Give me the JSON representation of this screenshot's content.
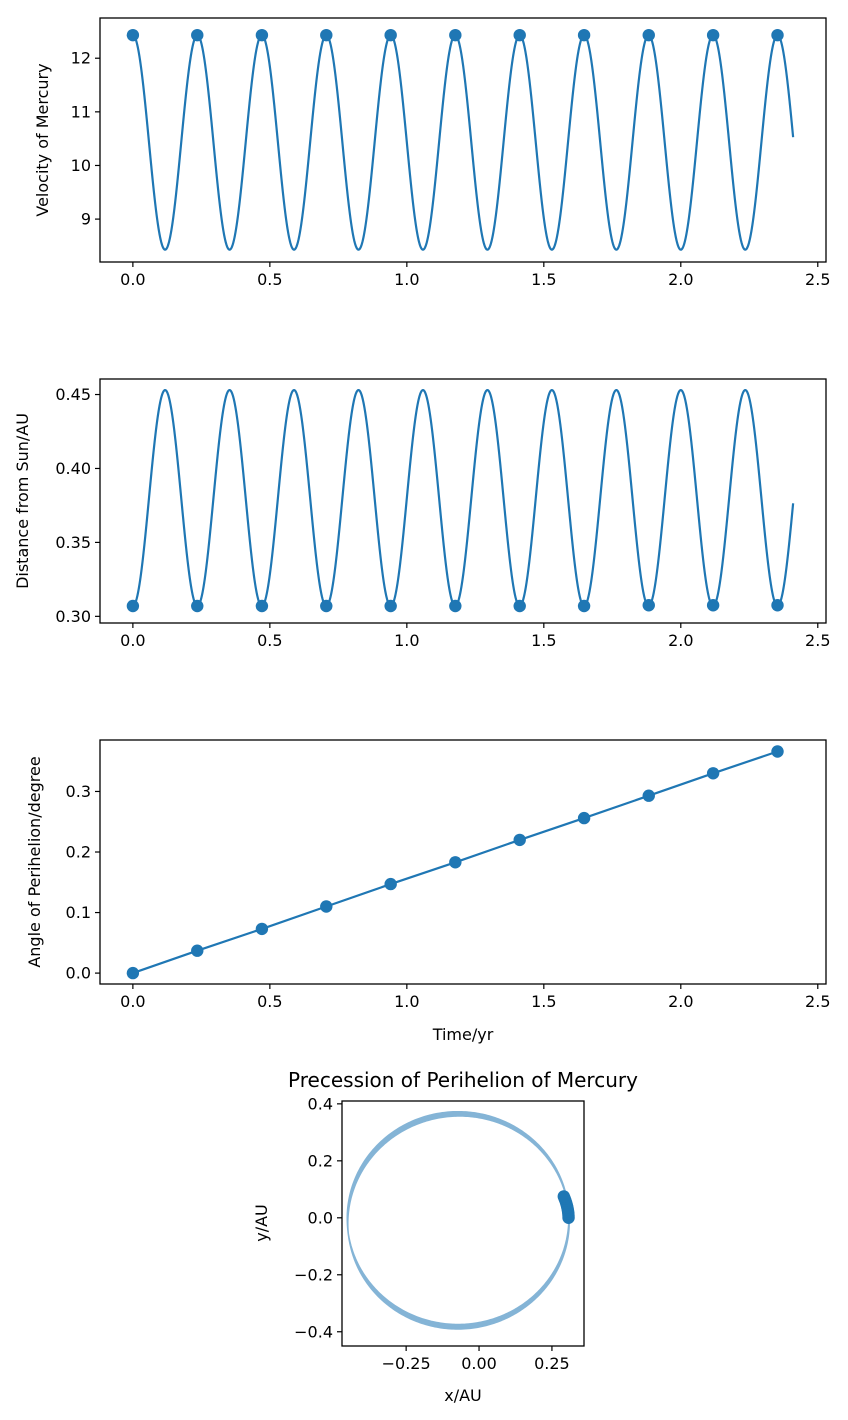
{
  "colors": {
    "series": "#1f77b4",
    "axes": "#000000",
    "background": "#ffffff"
  },
  "chart_data": [
    {
      "type": "line",
      "title": "",
      "xlabel": "",
      "ylabel": "Velocity of Mercury",
      "xlim": [
        -0.12,
        2.53
      ],
      "ylim": [
        8.2,
        12.75
      ],
      "xticks": [
        0.0,
        0.5,
        1.0,
        1.5,
        2.0,
        2.5
      ],
      "xtick_labels": [
        "0.0",
        "0.5",
        "1.0",
        "1.5",
        "2.0",
        "2.5"
      ],
      "yticks": [
        9,
        10,
        11,
        12
      ],
      "ytick_labels": [
        "9",
        "10",
        "11",
        "12"
      ],
      "curve": {
        "kind": "periodic",
        "period": 0.2353,
        "tmax": 2.41,
        "max": 12.43,
        "min": 8.43,
        "peak_at_marker": true
      },
      "series": [
        {
          "mode": "markers",
          "x": [
            0.0,
            0.235,
            0.471,
            0.706,
            0.941,
            1.177,
            1.412,
            1.647,
            1.883,
            2.118,
            2.353
          ],
          "y": [
            12.43,
            12.43,
            12.43,
            12.43,
            12.43,
            12.43,
            12.43,
            12.43,
            12.43,
            12.43,
            12.43
          ]
        }
      ],
      "grid": false
    },
    {
      "type": "line",
      "title": "",
      "xlabel": "",
      "ylabel": "Distance from Sun/AU",
      "xlim": [
        -0.12,
        2.53
      ],
      "ylim": [
        0.2955,
        0.4605
      ],
      "xticks": [
        0.0,
        0.5,
        1.0,
        1.5,
        2.0,
        2.5
      ],
      "xtick_labels": [
        "0.0",
        "0.5",
        "1.0",
        "1.5",
        "2.0",
        "2.5"
      ],
      "yticks": [
        0.3,
        0.35,
        0.4,
        0.45
      ],
      "ytick_labels": [
        "0.30",
        "0.35",
        "0.40",
        "0.45"
      ],
      "curve": {
        "kind": "periodic",
        "period": 0.2353,
        "tmax": 2.41,
        "max": 0.453,
        "min": 0.307,
        "peak_at_marker": false
      },
      "series": [
        {
          "mode": "markers",
          "x": [
            0.0,
            0.235,
            0.471,
            0.706,
            0.941,
            1.177,
            1.412,
            1.647,
            1.883,
            2.118,
            2.353
          ],
          "y": [
            0.307,
            0.307,
            0.307,
            0.307,
            0.307,
            0.307,
            0.307,
            0.307,
            0.3075,
            0.3075,
            0.3075
          ]
        }
      ],
      "grid": false
    },
    {
      "type": "line",
      "title": "",
      "xlabel": "Time/yr",
      "ylabel": "Angle of Perihelion/degree",
      "xlim": [
        -0.12,
        2.53
      ],
      "ylim": [
        -0.018,
        0.385
      ],
      "xticks": [
        0.0,
        0.5,
        1.0,
        1.5,
        2.0,
        2.5
      ],
      "xtick_labels": [
        "0.0",
        "0.5",
        "1.0",
        "1.5",
        "2.0",
        "2.5"
      ],
      "yticks": [
        0.0,
        0.1,
        0.2,
        0.3
      ],
      "ytick_labels": [
        "0.0",
        "0.1",
        "0.2",
        "0.3"
      ],
      "series": [
        {
          "mode": "lines+markers",
          "x": [
            0.0,
            0.235,
            0.471,
            0.706,
            0.941,
            1.177,
            1.412,
            1.647,
            1.883,
            2.118,
            2.353
          ],
          "y": [
            0.0,
            0.037,
            0.073,
            0.11,
            0.147,
            0.183,
            0.22,
            0.256,
            0.293,
            0.33,
            0.366
          ]
        }
      ],
      "grid": false
    },
    {
      "type": "line",
      "title": "Precession of Perihelion of Mercury",
      "xlabel": "x/AU",
      "ylabel": "y/AU",
      "xlim": [
        -0.47,
        0.36
      ],
      "ylim": [
        -0.45,
        0.41
      ],
      "xticks": [
        -0.25,
        0.0,
        0.25
      ],
      "xtick_labels": [
        "−0.25",
        "0.00",
        "0.25"
      ],
      "yticks": [
        -0.4,
        -0.2,
        0.0,
        0.2,
        0.4
      ],
      "ytick_labels": [
        "−0.4",
        "−0.2",
        "0.0",
        "0.2",
        "0.4"
      ],
      "orbit": {
        "semi_major": 0.38,
        "eccentricity": 0.19,
        "precession_deg_total": 14,
        "turns": 11
      },
      "series": [
        {
          "mode": "markers",
          "x": [
            0.307,
            0.3068,
            0.3063,
            0.3054,
            0.3042,
            0.3027,
            0.3009,
            0.2988,
            0.2964,
            0.2937,
            0.2907
          ],
          "y": [
            0.0,
            0.0075,
            0.015,
            0.0225,
            0.03,
            0.0375,
            0.045,
            0.0525,
            0.06,
            0.0675,
            0.075
          ]
        }
      ],
      "grid": false
    }
  ]
}
